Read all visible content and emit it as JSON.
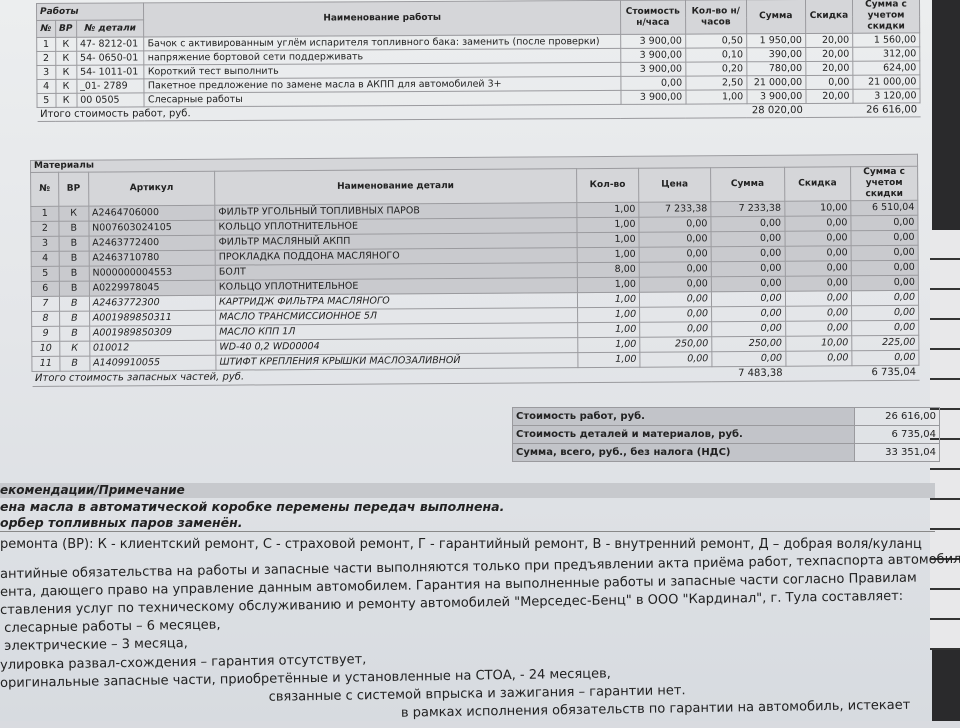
{
  "works": {
    "section_label": "Работы",
    "headers": [
      "№",
      "ВР",
      "№ детали",
      "Наименование работы",
      "Стоимость н/часа",
      "Кол-во н/часов",
      "Сумма",
      "Скидка",
      "Сумма с учетом скидки"
    ],
    "rows": [
      [
        "1",
        "К",
        "47- 8212-01",
        "Бачок с активированным углём испарителя топливного бака: заменить (после проверки)",
        "3 900,00",
        "0,50",
        "1 950,00",
        "20,00",
        "1 560,00"
      ],
      [
        "2",
        "К",
        "54- 0650-01",
        "напряжение бортовой сети поддерживать",
        "3 900,00",
        "0,10",
        "390,00",
        "20,00",
        "312,00"
      ],
      [
        "3",
        "К",
        "54- 1011-01",
        "Короткий тест выполнить",
        "3 900,00",
        "0,20",
        "780,00",
        "20,00",
        "624,00"
      ],
      [
        "4",
        "К",
        "_01- 2789",
        "Пакетное предложение по замене масла в АКПП для автомобилей 3+",
        "0,00",
        "2,50",
        "21 000,00",
        "0,00",
        "21 000,00"
      ],
      [
        "5",
        "К",
        "00 0505",
        "Слесарные работы",
        "3 900,00",
        "1,00",
        "3 900,00",
        "20,00",
        "3 120,00"
      ]
    ],
    "total_label": "Итого стоимость работ, руб.",
    "total_sum": "28 020,00",
    "total_discounted": "26 616,00"
  },
  "materials": {
    "section_label": "Материалы",
    "headers": [
      "№",
      "ВР",
      "Артикул",
      "Наименование детали",
      "Кол-во",
      "Цена",
      "Сумма",
      "Скидка",
      "Сумма с учетом скидки"
    ],
    "rows": [
      [
        "1",
        "К",
        "A2464706000",
        "ФИЛЬТР УГОЛЬНЫЙ ТОПЛИВНЫХ ПАРОВ",
        "1,00",
        "7 233,38",
        "7 233,38",
        "10,00",
        "6 510,04"
      ],
      [
        "2",
        "В",
        "N007603024105",
        "КОЛЬЦО УПЛОТНИТЕЛЬНОЕ",
        "1,00",
        "0,00",
        "0,00",
        "0,00",
        "0,00"
      ],
      [
        "3",
        "В",
        "A2463772400",
        "ФИЛЬТР МАСЛЯНЫЙ АКПП",
        "1,00",
        "0,00",
        "0,00",
        "0,00",
        "0,00"
      ],
      [
        "4",
        "В",
        "A2463710780",
        "ПРОКЛАДКА ПОДДОНА МАСЛЯНОГО",
        "1,00",
        "0,00",
        "0,00",
        "0,00",
        "0,00"
      ],
      [
        "5",
        "В",
        "N000000004553",
        "БОЛТ",
        "8,00",
        "0,00",
        "0,00",
        "0,00",
        "0,00"
      ],
      [
        "6",
        "В",
        "A0229978045",
        "КОЛЬЦО УПЛОТНИТЕЛЬНОЕ",
        "1,00",
        "0,00",
        "0,00",
        "0,00",
        "0,00"
      ],
      [
        "7",
        "В",
        "A2463772300",
        "КАРТРИДЖ ФИЛЬТРА МАСЛЯНОГО",
        "1,00",
        "0,00",
        "0,00",
        "0,00",
        "0,00"
      ],
      [
        "8",
        "В",
        "A001989850311",
        "МАСЛО ТРАНСМИССИОННОЕ 5Л",
        "1,00",
        "0,00",
        "0,00",
        "0,00",
        "0,00"
      ],
      [
        "9",
        "В",
        "A001989850309",
        "МАСЛО КПП 1Л",
        "1,00",
        "0,00",
        "0,00",
        "0,00",
        "0,00"
      ],
      [
        "10",
        "К",
        "010012",
        "WD-40 0,2   WD00004",
        "1,00",
        "250,00",
        "250,00",
        "10,00",
        "225,00"
      ],
      [
        "11",
        "В",
        "A1409910055",
        "ШТИФТ КРЕПЛЕНИЯ КРЫШКИ МАСЛОЗАЛИВНОЙ",
        "1,00",
        "0,00",
        "0,00",
        "0,00",
        "0,00"
      ]
    ],
    "total_label": "Итого стоимость запасных частей, руб.",
    "total_sum": "7 483,38",
    "total_discounted": "6 735,04"
  },
  "summary": [
    {
      "label": "Стоимость работ, руб.",
      "value": "26 616,00"
    },
    {
      "label": "Стоимость деталей и материалов, руб.",
      "value": "6 735,04"
    },
    {
      "label": "Сумма, всего, руб., без налога (НДС)",
      "value": "33 351,04"
    }
  ],
  "recommendations": {
    "title": "екомендации/Примечание",
    "lines": [
      "ена масла в автоматической коробке перемены передач выполнена.",
      "орбер топливных паров заменён."
    ]
  },
  "notes": [
    "ремонта (ВР): К - клиентский ремонт, С - страховой ремонт, Г - гарантийный ремонт, В - внутренний ремонт, Д – добрая воля/куланц",
    "антийные обязательства на работы и запасные части выполняются только при предъявлении акта приёма работ, техпаспорта автомобиля и",
    "ента, дающего право на управление данным автомобилем. Гарантия на выполненные работы и запасные части согласно Правилам",
    "ставления услуг по техническому обслуживанию и ремонту автомобилей \"Мерседес-Бенц\" в ООО \"Кардинал\", г. Тула составляет:",
    " слесарные работы – 6 месяцев,",
    " электрические – 3 месяца,",
    "улировка развал-схождения – гарантия отсутствует,",
    "оригинальные запасные части, приобретённые и установленные на СТОА, - 24 месяцев,",
    "                                                                 связанные с системой впрыска и зажигания – гарантии нет.",
    "                                                                                                 в рамках исполнения обязательств по гарантии на автомобиль, истекает"
  ]
}
